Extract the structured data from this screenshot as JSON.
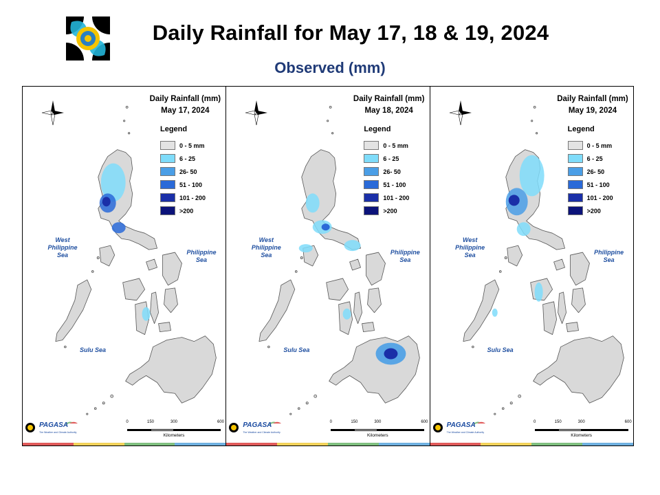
{
  "header": {
    "title": "Daily Rainfall for May 17, 18 & 19, 2024",
    "subtitle": "Observed (mm)"
  },
  "legend": {
    "title": "Legend",
    "items": [
      {
        "label": "0 - 5 mm",
        "color": "#e3e3e3"
      },
      {
        "label": "6 - 25",
        "color": "#7fdcfa"
      },
      {
        "label": "26- 50",
        "color": "#4a9ee6"
      },
      {
        "label": "51 - 100",
        "color": "#2a6ad8"
      },
      {
        "label": "101 - 200",
        "color": "#1a2fa8"
      },
      {
        "label": ">200",
        "color": "#0c137a"
      }
    ]
  },
  "panels": [
    {
      "title": "Daily Rainfall (mm)",
      "date": "May 17, 2024"
    },
    {
      "title": "Daily Rainfall (mm)",
      "date": "May 18, 2024"
    },
    {
      "title": "Daily Rainfall (mm)",
      "date": "May 19, 2024"
    }
  ],
  "map_labels": {
    "west_sea": "West Philippine Sea",
    "philippine_sea": "Philippine Sea",
    "sulu_sea": "Sulu Sea",
    "compass": {
      "n": "N",
      "s": "S",
      "e": "E",
      "w": "W"
    }
  },
  "scale": {
    "ticks": [
      "0",
      "150",
      "300",
      "600"
    ],
    "unit": "Kilometers"
  },
  "branding": {
    "name": "PAGASA",
    "tagline": "The Weather and Climate Authority"
  },
  "colors": {
    "land": "#d9d9d9",
    "outline": "#555555",
    "strip": [
      "#e05a5a",
      "#f2d25a",
      "#7fbf7f",
      "#6fb0e0"
    ]
  }
}
